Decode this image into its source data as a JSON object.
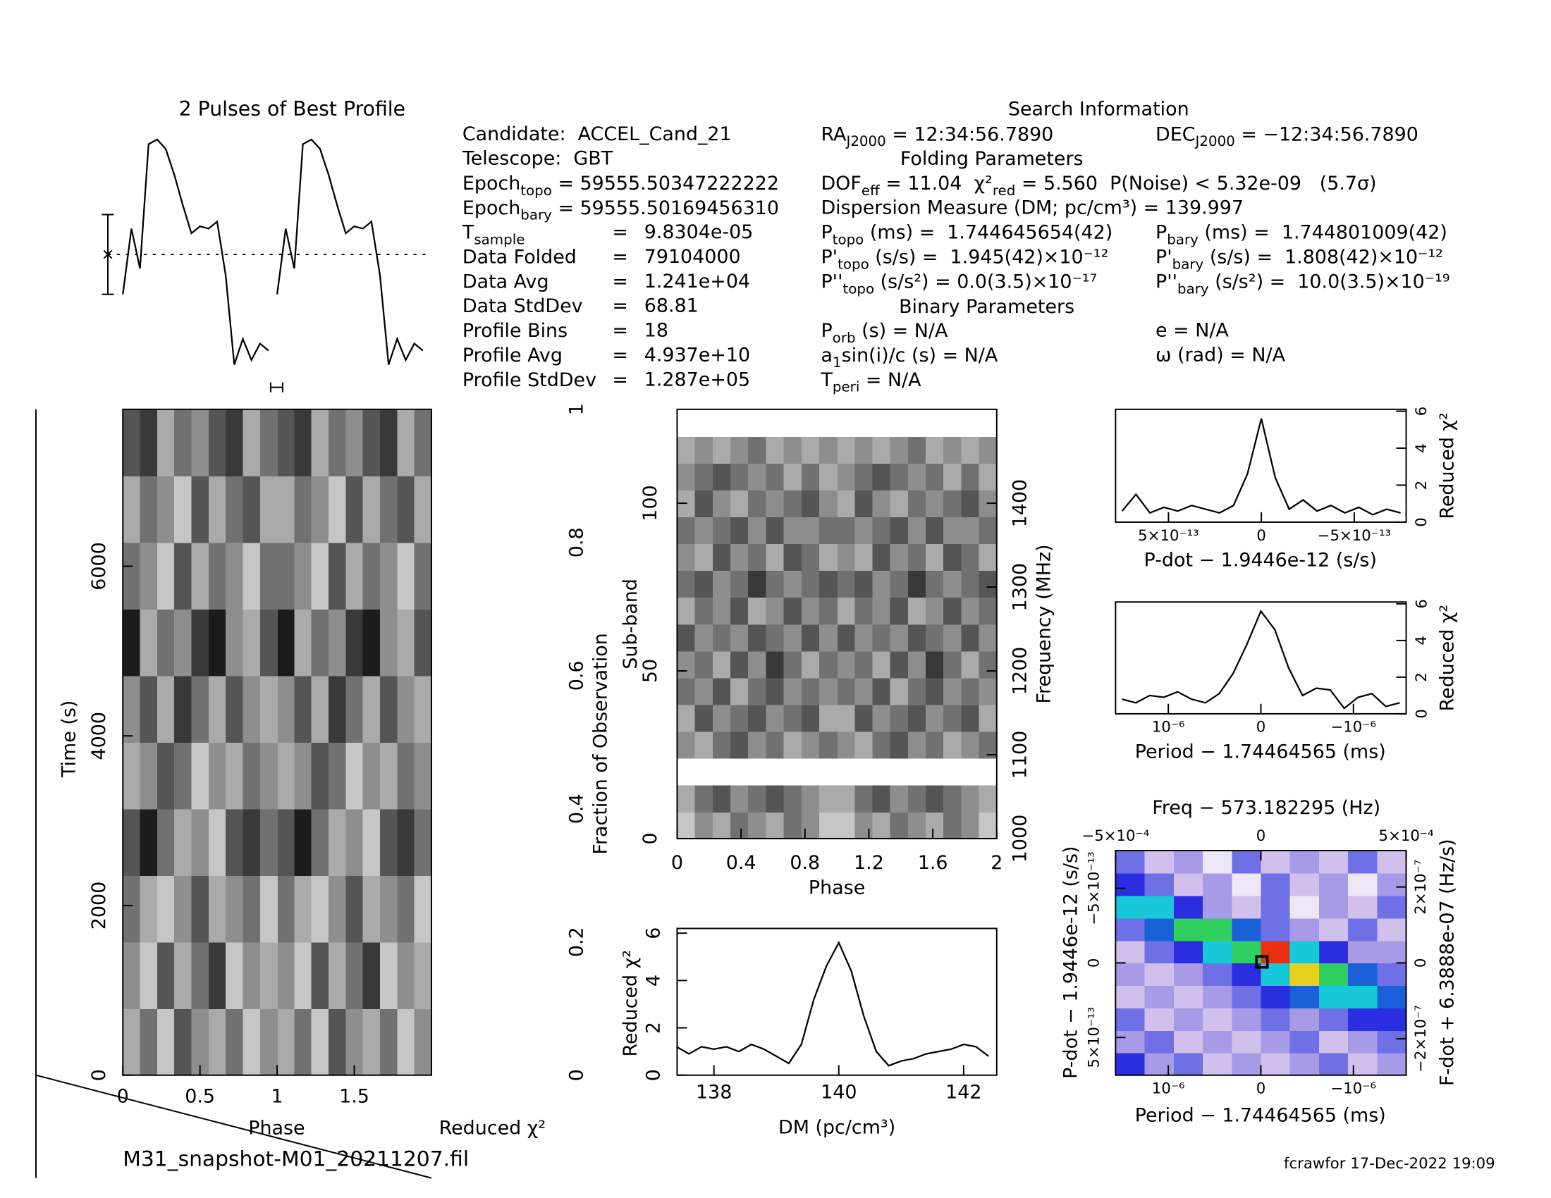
{
  "info": {
    "title": "Search Information",
    "folding_title": "Folding Parameters",
    "binary_title": "Binary Parameters",
    "col1": [
      "Candidate:  ACCEL_Cand_21",
      "Telescope:  GBT",
      [
        "Epoch",
        {
          "sub": "topo"
        },
        " = 59555.50347222222"
      ],
      [
        "Epoch",
        {
          "sub": "bary"
        },
        " = 59555.50169456310"
      ],
      {
        "label": [
          "T",
          {
            "sub": "sample"
          }
        ],
        "eq": "=",
        "value": "9.8304e-05"
      },
      {
        "label": [
          "Data Folded"
        ],
        "eq": "=",
        "value": "79104000"
      },
      {
        "label": [
          "Data Avg"
        ],
        "eq": "=",
        "value": "1.241e+04"
      },
      {
        "label": [
          "Data StdDev"
        ],
        "eq": "=",
        "value": "68.81"
      },
      {
        "label": [
          "Profile Bins"
        ],
        "eq": "=",
        "value": "18"
      },
      {
        "label": [
          "Profile Avg"
        ],
        "eq": "=",
        "value": "4.937e+10"
      },
      {
        "label": [
          "Profile StdDev"
        ],
        "eq": "=",
        "value": "1.287e+05"
      }
    ],
    "col2": [
      [
        "RA",
        {
          "sub": "J2000"
        },
        " = 12:34:56.7890"
      ],
      [
        "DOF",
        {
          "sub": "eff"
        },
        " = 11.04  χ²",
        {
          "sub": "red"
        },
        " = 5.560  P(Noise) < 5.32e-09   (5.7σ)"
      ],
      "Dispersion Measure (DM; pc/cm³) = 139.997",
      [
        "P",
        {
          "sub": "topo"
        },
        " (ms) =  1.744645654(42)"
      ],
      [
        "P'",
        {
          "sub": "topo"
        },
        " (s/s) =  1.945(42)×10⁻¹²"
      ],
      [
        "P''",
        {
          "sub": "topo"
        },
        " (s/s²) = 0.0(3.5)×10⁻¹⁷"
      ],
      [
        "P",
        {
          "sub": "orb"
        },
        " (s) = N/A"
      ],
      [
        "a",
        {
          "sub": "1"
        },
        "sin(i)/c (s) = N/A"
      ],
      [
        "T",
        {
          "sub": "peri"
        },
        " = N/A"
      ]
    ],
    "col3": [
      [
        "DEC",
        {
          "sub": "J2000"
        },
        " = −12:34:56.7890"
      ],
      [
        "P",
        {
          "sub": "bary"
        },
        " (ms) =  1.744801009(42)"
      ],
      [
        "P'",
        {
          "sub": "bary"
        },
        " (s/s) =  1.808(42)×10⁻¹²"
      ],
      [
        "P''",
        {
          "sub": "bary"
        },
        " (s/s²) =  10.0(3.5)×10⁻¹⁹"
      ],
      "e = N/A",
      "ω (rad) = N/A"
    ]
  },
  "filename": "M31_snapshot-M01_20211207.fil",
  "footer": "fcrawfor 17-Dec-2022 19:09",
  "chart_data": [
    {
      "type": "profile",
      "title": "2 Pulses of Best Profile",
      "values": [
        0.32,
        0.6,
        0.43,
        0.96,
        0.98,
        0.94,
        0.83,
        0.7,
        0.58,
        0.61,
        0.6,
        0.63,
        0.4,
        0.02,
        0.13,
        0.04,
        0.11,
        0.08
      ],
      "ylim": [
        0,
        1
      ],
      "error_bar": {
        "center": 0.49,
        "error": 0.17
      }
    },
    {
      "type": "heatmap",
      "xlabel": "Phase",
      "ylabel": "Time (s)",
      "side_label": "Reduced χ²",
      "xlim": [
        0,
        2
      ],
      "xticks": [
        0,
        0.5,
        1,
        1.5
      ],
      "ylim": [
        0,
        7850
      ],
      "yticks": [
        0,
        2000,
        4000,
        6000
      ],
      "z": [
        [
          3,
          5,
          2,
          6,
          4,
          3,
          5,
          2,
          4
        ],
        [
          4,
          2,
          6,
          3,
          5,
          7,
          2,
          4,
          3
        ],
        [
          5,
          3,
          2,
          4,
          6,
          3,
          4,
          5,
          2
        ],
        [
          6,
          8,
          5,
          3,
          4,
          2,
          6,
          7,
          5
        ],
        [
          3,
          4,
          6,
          5,
          2,
          4,
          3,
          5,
          4
        ],
        [
          4,
          6,
          3,
          7,
          5,
          3,
          6,
          4,
          3
        ],
        [
          8,
          3,
          5,
          4,
          7,
          8,
          4,
          3,
          6
        ],
        [
          5,
          4,
          2,
          6,
          3,
          5,
          4,
          2,
          5
        ],
        [
          3,
          5,
          4,
          2,
          6,
          3,
          5,
          6,
          3
        ],
        [
          6,
          7,
          3,
          5,
          4,
          6,
          7,
          3,
          5
        ]
      ]
    },
    {
      "type": "heatmap",
      "xlabel": "Phase",
      "ylabel": "Sub-band",
      "y2label": "Frequency (MHz)",
      "y3label": "Fraction of Observation",
      "xlim": [
        0,
        2
      ],
      "xticks": [
        0,
        0.4,
        0.8,
        1.2,
        1.6,
        2
      ],
      "ylim": [
        0,
        128
      ],
      "yticks": [
        0,
        50,
        100
      ],
      "y2lim": [
        1000,
        1512
      ],
      "y2ticks": [
        1000,
        1100,
        1200,
        1300,
        1400
      ],
      "y3lim": [
        0,
        1
      ],
      "y3ticks": [
        0,
        0.2,
        0.4,
        0.6,
        0.8,
        1
      ],
      "z": [
        [
          2,
          4,
          3,
          5,
          4,
          3,
          5,
          4,
          2
        ],
        [
          3,
          5,
          6,
          4,
          5,
          6,
          5,
          4,
          3
        ],
        [
          0,
          0,
          0,
          0,
          0,
          0,
          0,
          0,
          0
        ],
        [
          4,
          3,
          5,
          6,
          4,
          5,
          3,
          4,
          5
        ],
        [
          3,
          6,
          4,
          5,
          6,
          4,
          5,
          6,
          3
        ],
        [
          5,
          4,
          6,
          3,
          5,
          6,
          4,
          5,
          4
        ],
        [
          4,
          5,
          3,
          6,
          4,
          7,
          5,
          3,
          5
        ],
        [
          6,
          4,
          5,
          4,
          6,
          5,
          4,
          6,
          4
        ],
        [
          3,
          5,
          4,
          6,
          3,
          4,
          6,
          4,
          5
        ],
        [
          5,
          6,
          4,
          5,
          7,
          5,
          4,
          5,
          6
        ],
        [
          4,
          3,
          6,
          4,
          5,
          3,
          6,
          5,
          3
        ],
        [
          5,
          4,
          5,
          6,
          4,
          6,
          4,
          4,
          5
        ],
        [
          3,
          6,
          4,
          3,
          5,
          4,
          5,
          6,
          4
        ],
        [
          4,
          5,
          6,
          5,
          4,
          5,
          3,
          5,
          3
        ],
        [
          3,
          4,
          3,
          4,
          5,
          3,
          4,
          3,
          4
        ],
        [
          0,
          0,
          0,
          0,
          0,
          0,
          0,
          0,
          0
        ]
      ]
    },
    {
      "type": "line",
      "xlabel": "DM (pc/cm³)",
      "ylabel": "Reduced χ²",
      "x": [
        137.4,
        137.6,
        137.8,
        138.0,
        138.2,
        138.4,
        138.6,
        138.8,
        139.0,
        139.2,
        139.4,
        139.6,
        139.8,
        140.0,
        140.2,
        140.4,
        140.6,
        140.8,
        141.0,
        141.2,
        141.4,
        141.6,
        141.8,
        142.0,
        142.2,
        142.4
      ],
      "values": [
        1.2,
        0.9,
        1.2,
        1.1,
        1.2,
        1.0,
        1.3,
        1.1,
        0.8,
        0.5,
        1.3,
        3.2,
        4.6,
        5.6,
        4.4,
        2.5,
        1.0,
        0.4,
        0.6,
        0.7,
        0.9,
        1.0,
        1.1,
        1.3,
        1.2,
        0.8
      ],
      "xlim": [
        137.41,
        142.53
      ],
      "xticks": [
        138,
        140,
        142
      ],
      "ylim": [
        0,
        6.2
      ],
      "yticks": [
        0,
        2,
        4,
        6
      ]
    },
    {
      "type": "line",
      "xlabel": "P-dot − 1.9446e-12 (s/s)",
      "ylabel": "Reduced χ²",
      "x": [
        7.5e-13,
        6.75e-13,
        6e-13,
        5.25e-13,
        4.5e-13,
        3.75e-13,
        3e-13,
        2.25e-13,
        1.5e-13,
        7.5e-14,
        0,
        -7.5e-14,
        -1.5e-13,
        -2.25e-13,
        -3e-13,
        -3.75e-13,
        -4.5e-13,
        -5.25e-13,
        -6e-13,
        -6.75e-13,
        -7.5e-13
      ],
      "values": [
        0.6,
        1.5,
        0.5,
        0.8,
        0.6,
        0.9,
        0.7,
        0.5,
        0.9,
        2.6,
        5.6,
        2.4,
        0.7,
        1.2,
        0.6,
        0.9,
        0.5,
        0.8,
        0.4,
        0.7,
        0.5
      ],
      "xlim": [
        7.85e-13,
        -7.8e-13
      ],
      "xticks": [
        {
          "value": 5e-13,
          "label": "5×10⁻¹³"
        },
        0,
        {
          "value": -5e-13,
          "label": "−5×10⁻¹³"
        }
      ],
      "ylim": [
        0,
        6.1
      ],
      "yticks": [
        0,
        2,
        4,
        6
      ]
    },
    {
      "type": "line",
      "xlabel": "Period − 1.74464565 (ms)",
      "ylabel": "Reduced χ²",
      "x": [
        1.5e-06,
        1.35e-06,
        1.2e-06,
        1.05e-06,
        9e-07,
        7.5e-07,
        6e-07,
        4.5e-07,
        3e-07,
        1.5e-07,
        0,
        -1.5e-07,
        -3e-07,
        -4.5e-07,
        -6e-07,
        -7.5e-07,
        -9e-07,
        -1.05e-06,
        -1.2e-06,
        -1.35e-06,
        -1.5e-06
      ],
      "values": [
        0.8,
        0.6,
        1.0,
        0.9,
        1.2,
        0.8,
        0.6,
        1.1,
        2.2,
        3.8,
        5.6,
        4.6,
        2.5,
        1.0,
        1.4,
        1.3,
        0.3,
        0.9,
        1.1,
        0.4,
        0.6
      ],
      "xlim": [
        1.57e-06,
        -1.57e-06
      ],
      "xticks": [
        {
          "value": 1e-06,
          "label": "10⁻⁶"
        },
        0,
        {
          "value": -1e-06,
          "label": "−10⁻⁶"
        }
      ],
      "ylim": [
        0,
        6.1
      ],
      "yticks": [
        0,
        2,
        4,
        6
      ]
    },
    {
      "type": "colormap",
      "title": "Freq − 573.182295 (Hz)",
      "xlabel": "Period − 1.74464565 (ms)",
      "ylabel": "P-dot − 1.9446e-12 (s/s)",
      "y2label": "F-dot + 6.3888e-07 (Hz/s)",
      "xlim": [
        1.57e-06,
        -1.57e-06
      ],
      "xticks": [
        {
          "value": 1e-06,
          "label": "10⁻⁶"
        },
        0,
        {
          "value": -1e-06,
          "label": "−10⁻⁶"
        }
      ],
      "x2lim": [
        -0.0005,
        0.0005
      ],
      "x2ticks": [
        {
          "value": -0.0005,
          "label": "−5×10⁻⁴"
        },
        0,
        {
          "value": 0.0005,
          "label": "5×10⁻⁴"
        }
      ],
      "ylim": [
        7.53e-13,
        -7.53e-13
      ],
      "yticks": [
        {
          "value": 5e-13,
          "label": "5×10⁻¹³"
        },
        0,
        {
          "value": -5e-13,
          "label": "−5×10⁻¹³"
        }
      ],
      "y2lim": [
        -2.96e-07,
        2.96e-07
      ],
      "y2ticks": [
        {
          "value": -2e-07,
          "label": "−2×10⁻⁷"
        },
        0,
        {
          "value": 2e-07,
          "label": "2×10⁻⁷"
        }
      ],
      "colors": [
        "#efe6f5",
        "#d2c0ec",
        "#a79ae6",
        "#6f70e6",
        "#2a2ee0",
        "#1a60d8",
        "#16c8d8",
        "#30d060",
        "#e8d020",
        "#e83010"
      ],
      "z": [
        [
          4,
          2,
          3,
          1,
          2,
          1,
          2,
          3,
          1,
          2
        ],
        [
          2,
          3,
          1,
          2,
          1,
          2,
          3,
          1,
          2,
          3
        ],
        [
          3,
          1,
          2,
          1,
          2,
          3,
          2,
          3,
          4,
          4
        ],
        [
          1,
          2,
          1,
          2,
          3,
          4,
          5,
          6,
          6,
          5
        ],
        [
          2,
          1,
          2,
          3,
          4,
          6,
          8,
          7,
          5,
          3
        ],
        [
          1,
          3,
          4,
          6,
          7,
          9,
          6,
          4,
          2,
          2
        ],
        [
          3,
          5,
          7,
          7,
          5,
          3,
          2,
          1,
          3,
          1
        ],
        [
          6,
          6,
          4,
          2,
          1,
          3,
          0,
          2,
          1,
          3
        ],
        [
          4,
          3,
          1,
          2,
          0,
          3,
          1,
          2,
          0,
          2
        ],
        [
          3,
          1,
          2,
          0,
          3,
          1,
          2,
          1,
          3,
          1
        ]
      ]
    }
  ]
}
